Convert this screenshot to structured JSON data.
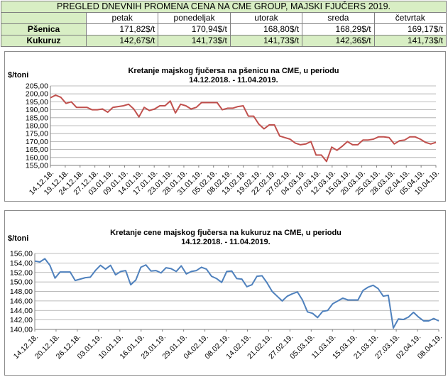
{
  "price_table": {
    "title": "PREGLED DNEVNIH PROMENA CENA NA CME GROUP, MAJSKI FJUČERS 2019.",
    "days": [
      "petak",
      "ponedeljak",
      "utorak",
      "sreda",
      "četvrtak"
    ],
    "rows": [
      {
        "label": "Pšenica",
        "values": [
          "171,82$/t",
          "170,94$/t",
          "168,80$/t",
          "168,29$/t",
          "169,17$/t"
        ]
      },
      {
        "label": "Kukuruz",
        "values": [
          "142,67$/t",
          "141,73$/t",
          "141,73$/t",
          "142,36$/t",
          "141,73$/t"
        ]
      }
    ]
  },
  "chart_data": [
    {
      "type": "line",
      "title": "Kretanje majskog fjučersa na  pšenicu na CME, u periodu",
      "subtitle": "14.12.2018. - 11.04.2019.",
      "ylabel": "$/toni",
      "ylim": [
        155,
        205
      ],
      "yticks": [
        "155,00",
        "160,00",
        "165,00",
        "170,00",
        "175,00",
        "180,00",
        "185,00",
        "190,00",
        "195,00",
        "200,00",
        "205,00"
      ],
      "xtick_labels": [
        "14.12.18.",
        "19.12.18.",
        "24.12.18.",
        "27.12.18.",
        "03.01.19.",
        "09.01.19.",
        "14.01.19.",
        "17.01.19.",
        "23.01.19.",
        "28.01.19.",
        "31.01.19.",
        "05.02.19.",
        "08.02.19.",
        "13.02.19.",
        "19.02.19.",
        "22.02.19.",
        "27.02.19.",
        "04.03.19.",
        "07.03.19.",
        "12.03.19.",
        "15.03.19.",
        "20.03.19.",
        "25.03.19.",
        "28.03.19.",
        "02.04.19.",
        "05.04.19.",
        "10.04.19."
      ],
      "grid": true,
      "color": "#c0504d",
      "series": [
        {
          "values": [
            197.5,
            199.2,
            197.8,
            194.0,
            195.0,
            191.5,
            191.5,
            191.5,
            190.0,
            190.0,
            190.5,
            188.5,
            191.5,
            192.0,
            192.5,
            193.5,
            190.5,
            185.5,
            191.5,
            189.5,
            190.5,
            192.5,
            192.5,
            195.5,
            188.0,
            193.5,
            192.5,
            190.5,
            191.5,
            194.5,
            194.5,
            194.5,
            194.5,
            190.0,
            191.0,
            191.0,
            192.0,
            192.5,
            186.0,
            186.0,
            181.0,
            178.0,
            180.5,
            180.5,
            173.5,
            172.5,
            171.5,
            169.0,
            168.0,
            168.5,
            170.0,
            161.5,
            161.5,
            157.5,
            166.5,
            164.5,
            167.0,
            170.0,
            168.0,
            168.0,
            171.0,
            171.0,
            171.5,
            173.0,
            173.0,
            172.5,
            168.5,
            170.5,
            171.0,
            173.0,
            173.0,
            171.5,
            169.5,
            168.5,
            169.5
          ]
        }
      ]
    },
    {
      "type": "line",
      "title": "Kretanje cene majskog fjučersa na  kukuruz na CME, u periodu",
      "subtitle": "14.12.2018. - 11.04.2019.",
      "ylabel": "$/toni",
      "ylim": [
        140,
        156
      ],
      "yticks": [
        "140,00",
        "142,00",
        "144,00",
        "146,00",
        "148,00",
        "150,00",
        "152,00",
        "154,00",
        "156,00"
      ],
      "xtick_labels": [
        "14.12.18.",
        "20.12.18.",
        "26.12.18.",
        "03.01.19.",
        "10.01.19.",
        "16.01.19.",
        "23.01.19.",
        "29.01.19.",
        "04.02.19.",
        "08.02.19.",
        "14.02.19.",
        "21.02.19.",
        "27.02.19.",
        "05.03.19.",
        "11.03.19.",
        "15.03.19.",
        "21.03.19.",
        "27.03.19.",
        "02.04.19.",
        "08.04.19."
      ],
      "grid": true,
      "color": "#4f81bd",
      "series": [
        {
          "values": [
            154.4,
            154.2,
            154.9,
            153.5,
            150.8,
            152.1,
            152.1,
            152.1,
            150.3,
            150.6,
            150.9,
            151.0,
            152.4,
            153.5,
            152.7,
            153.5,
            151.5,
            152.2,
            152.4,
            149.4,
            150.4,
            153.1,
            153.6,
            152.3,
            152.4,
            151.9,
            153.0,
            152.8,
            152.2,
            153.4,
            151.7,
            152.2,
            152.4,
            153.1,
            152.7,
            151.2,
            150.7,
            149.9,
            152.2,
            152.3,
            150.7,
            150.6,
            149.0,
            149.4,
            151.2,
            151.3,
            149.8,
            148.0,
            147.0,
            146.0,
            147.0,
            147.5,
            147.9,
            146.2,
            143.7,
            143.4,
            142.5,
            143.8,
            144.0,
            145.4,
            146.0,
            146.6,
            146.2,
            146.2,
            146.2,
            148.2,
            148.9,
            149.3,
            148.6,
            147.0,
            147.2,
            140.3,
            142.2,
            142.1,
            142.6,
            143.6,
            142.6,
            141.8,
            141.8,
            142.3,
            141.8
          ]
        }
      ]
    }
  ]
}
